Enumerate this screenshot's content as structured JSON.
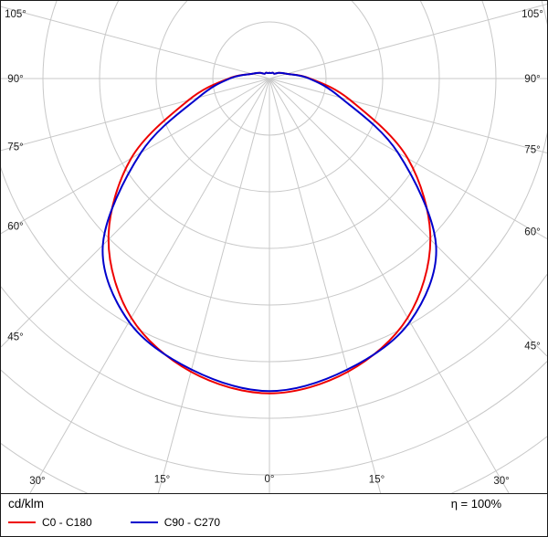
{
  "footer": {
    "units_label": "cd/klm",
    "efficiency_label": "η = 100%"
  },
  "chart_data": {
    "type": "line",
    "subtype": "polar-photometric-distribution",
    "value_unit": "cd/klm",
    "angle_label_positions_deg": [
      0,
      15,
      30,
      45,
      60,
      75,
      90,
      105
    ],
    "angle_labels": [
      "0°",
      "15°",
      "30°",
      "45°",
      "60°",
      "75°",
      "90°",
      "105°"
    ],
    "labels_mirrored_both_sides": true,
    "grid": {
      "ring_step_value": 50,
      "ring_count": 8,
      "color": "#c8c8c8",
      "rings_labeled": false
    },
    "series": [
      {
        "name": "C0 - C180",
        "color": "#ee0000",
        "angles_deg": [
          0,
          15,
          30,
          45,
          60,
          75,
          90,
          105,
          120,
          135,
          150,
          165,
          180
        ],
        "values": [
          278,
          268,
          244,
          201,
          141,
          74,
          36,
          16,
          10,
          6,
          6,
          5,
          5
        ],
        "symmetric": true
      },
      {
        "name": "C90 - C270",
        "color": "#0000cc",
        "angles_deg": [
          0,
          15,
          30,
          45,
          60,
          75,
          90,
          105,
          120,
          135,
          150,
          165,
          180
        ],
        "values": [
          276,
          266,
          248,
          208,
          131,
          65,
          35,
          16,
          10,
          6,
          6,
          5,
          5
        ],
        "symmetric": true
      }
    ]
  }
}
